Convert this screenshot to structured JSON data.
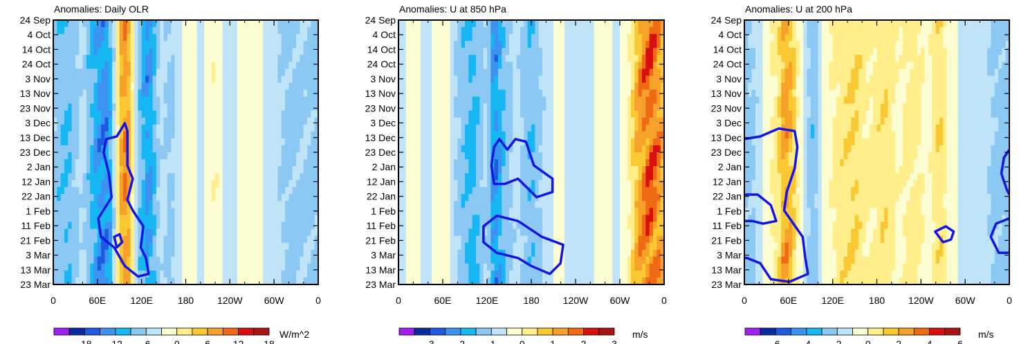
{
  "chart_data": [
    {
      "type": "heatmap",
      "title": "Anomalies: Daily OLR",
      "units": "W/m^2",
      "x_ticklabels": [
        "0",
        "60E",
        "120E",
        "180",
        "120W",
        "60W",
        "0"
      ],
      "y_ticklabels": [
        "24 Sep",
        "4 Oct",
        "14 Oct",
        "24 Oct",
        "3 Nov",
        "13 Nov",
        "23 Nov",
        "3 Dec",
        "13 Dec",
        "23 Dec",
        "2 Jan",
        "12 Jan",
        "22 Jan",
        "1 Feb",
        "11 Feb",
        "21 Feb",
        "3 Mar",
        "13 Mar",
        "23 Mar"
      ],
      "colorbar_labels": [
        "-18",
        "-12",
        "-6",
        "0",
        "6",
        "12",
        "18"
      ],
      "colorbar_range": [
        -21,
        21
      ],
      "bands": [
        {
          "lon": 0,
          "v": -4
        },
        {
          "lon": 20,
          "v": -6
        },
        {
          "lon": 40,
          "v": -2
        },
        {
          "lon": 60,
          "v": -9
        },
        {
          "lon": 70,
          "v": -11
        },
        {
          "lon": 80,
          "v": -6
        },
        {
          "lon": 90,
          "v": 8
        },
        {
          "lon": 100,
          "v": 12
        },
        {
          "lon": 115,
          "v": -4
        },
        {
          "lon": 130,
          "v": -10
        },
        {
          "lon": 145,
          "v": -2
        },
        {
          "lon": 160,
          "v": -4
        },
        {
          "lon": 180,
          "v": 2
        },
        {
          "lon": 200,
          "v": -1
        },
        {
          "lon": 220,
          "v": 3
        },
        {
          "lon": 240,
          "v": -2
        },
        {
          "lon": 260,
          "v": 2
        },
        {
          "lon": 280,
          "v": 1
        },
        {
          "lon": 300,
          "v": -2
        },
        {
          "lon": 320,
          "v": -4
        },
        {
          "lon": 340,
          "v": -3
        },
        {
          "lon": 360,
          "v": -4
        }
      ]
    },
    {
      "type": "heatmap",
      "title": "Anomalies: U at 850 hPa",
      "units": "m/s",
      "x_ticklabels": [
        "0",
        "60E",
        "120E",
        "180",
        "120W",
        "60W",
        "0"
      ],
      "y_ticklabels": [
        "24 Sep",
        "4 Oct",
        "14 Oct",
        "24 Oct",
        "3 Nov",
        "13 Nov",
        "23 Nov",
        "3 Dec",
        "13 Dec",
        "23 Dec",
        "2 Jan",
        "12 Jan",
        "22 Jan",
        "1 Feb",
        "11 Feb",
        "21 Feb",
        "3 Mar",
        "13 Mar",
        "23 Mar"
      ],
      "colorbar_labels": [
        "-3",
        "-2",
        "-1",
        "0",
        "1",
        "2",
        "3"
      ],
      "colorbar_range": [
        -3.5,
        3.5
      ],
      "bands": [
        {
          "lon": 0,
          "v": -0.4
        },
        {
          "lon": 20,
          "v": 0.3
        },
        {
          "lon": 40,
          "v": -0.2
        },
        {
          "lon": 60,
          "v": 0.4
        },
        {
          "lon": 80,
          "v": -0.6
        },
        {
          "lon": 100,
          "v": -1.2
        },
        {
          "lon": 120,
          "v": -0.4
        },
        {
          "lon": 130,
          "v": -1.8
        },
        {
          "lon": 145,
          "v": -0.8
        },
        {
          "lon": 160,
          "v": -0.3
        },
        {
          "lon": 180,
          "v": -1.0
        },
        {
          "lon": 200,
          "v": -0.3
        },
        {
          "lon": 220,
          "v": 0.2
        },
        {
          "lon": 240,
          "v": -0.4
        },
        {
          "lon": 260,
          "v": -0.2
        },
        {
          "lon": 280,
          "v": 0.4
        },
        {
          "lon": 295,
          "v": -0.3
        },
        {
          "lon": 310,
          "v": 0.3
        },
        {
          "lon": 325,
          "v": 1.6
        },
        {
          "lon": 340,
          "v": 2.3
        },
        {
          "lon": 355,
          "v": 1.8
        },
        {
          "lon": 360,
          "v": 1.2
        }
      ]
    },
    {
      "type": "heatmap",
      "title": "Anomalies: U at 200 hPa",
      "units": "m/s",
      "x_ticklabels": [
        "0",
        "60E",
        "120E",
        "180",
        "120W",
        "60W",
        "0"
      ],
      "y_ticklabels": [
        "24 Sep",
        "4 Oct",
        "14 Oct",
        "24 Oct",
        "3 Nov",
        "13 Nov",
        "23 Nov",
        "3 Dec",
        "13 Dec",
        "23 Dec",
        "2 Jan",
        "12 Jan",
        "22 Jan",
        "1 Feb",
        "11 Feb",
        "21 Feb",
        "3 Mar",
        "13 Mar",
        "23 Mar"
      ],
      "colorbar_labels": [
        "-6",
        "-4",
        "-2",
        "0",
        "2",
        "4",
        "6"
      ],
      "colorbar_range": [
        -7,
        7
      ],
      "bands": [
        {
          "lon": 0,
          "v": -1.5
        },
        {
          "lon": 15,
          "v": -1.0
        },
        {
          "lon": 30,
          "v": 0.5
        },
        {
          "lon": 45,
          "v": 1.5
        },
        {
          "lon": 55,
          "v": 3.5
        },
        {
          "lon": 65,
          "v": 2.5
        },
        {
          "lon": 80,
          "v": -0.5
        },
        {
          "lon": 95,
          "v": -1.8
        },
        {
          "lon": 110,
          "v": 0.5
        },
        {
          "lon": 130,
          "v": 1.5
        },
        {
          "lon": 150,
          "v": 2.0
        },
        {
          "lon": 170,
          "v": 1.0
        },
        {
          "lon": 190,
          "v": 1.8
        },
        {
          "lon": 210,
          "v": 0.8
        },
        {
          "lon": 230,
          "v": 1.5
        },
        {
          "lon": 250,
          "v": 0.6
        },
        {
          "lon": 265,
          "v": 2.0
        },
        {
          "lon": 280,
          "v": 0.5
        },
        {
          "lon": 300,
          "v": -0.5
        },
        {
          "lon": 320,
          "v": -0.4
        },
        {
          "lon": 340,
          "v": -1.2
        },
        {
          "lon": 360,
          "v": -1.5
        }
      ]
    }
  ]
}
